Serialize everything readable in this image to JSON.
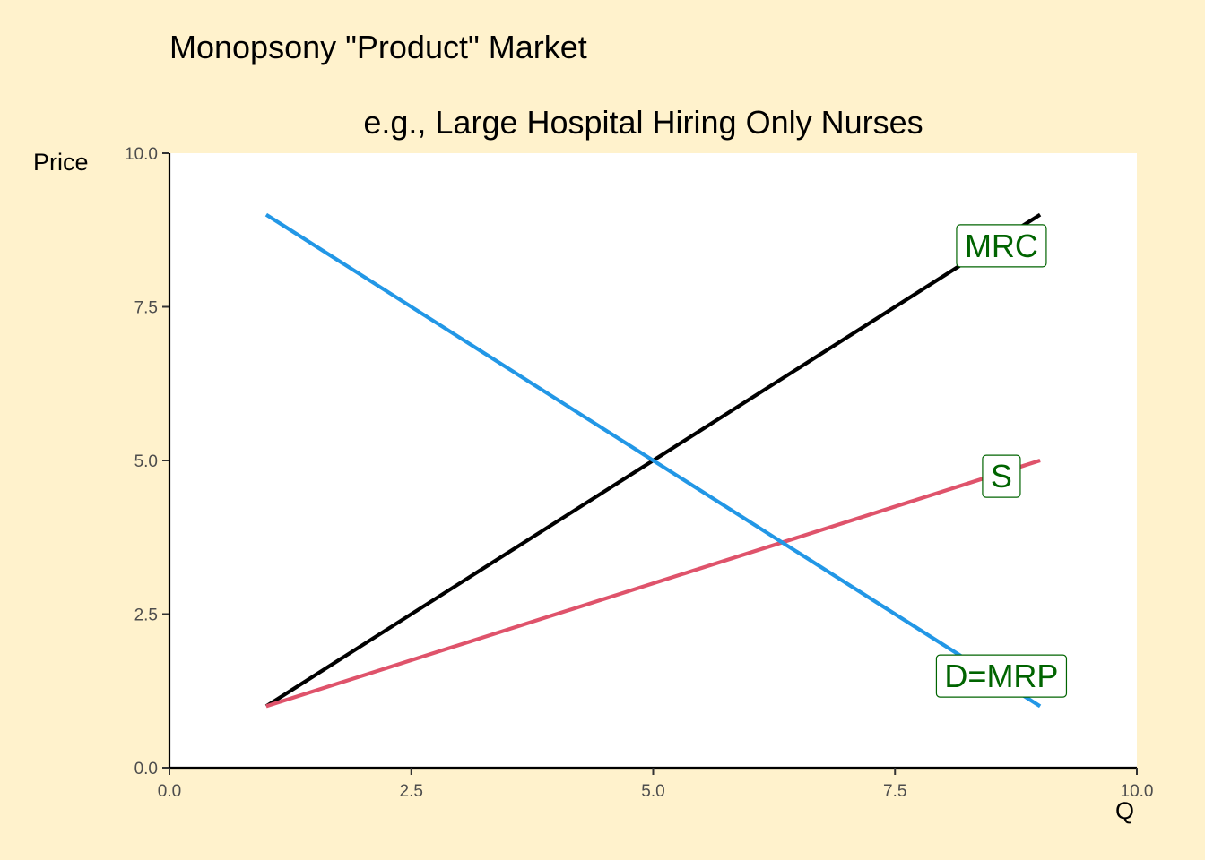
{
  "chart_data": {
    "type": "line",
    "title": "Monopsony \"Product\" Market",
    "subtitle": "e.g., Large Hospital Hiring Only Nurses",
    "xlabel": "Q",
    "ylabel": "Price",
    "xlim": [
      0,
      10
    ],
    "ylim": [
      0,
      10
    ],
    "xticks": [
      "0.0",
      "2.5",
      "5.0",
      "7.5",
      "10.0"
    ],
    "yticks": [
      "0.0",
      "2.5",
      "5.0",
      "7.5",
      "10.0"
    ],
    "grid": false,
    "series": [
      {
        "name": "MRC",
        "color": "#000000",
        "x": [
          1,
          9
        ],
        "y": [
          1,
          9
        ],
        "label_at": [
          8.6,
          8.5
        ]
      },
      {
        "name": "S",
        "color": "#df536b",
        "x": [
          1,
          9
        ],
        "y": [
          1,
          5
        ],
        "label_at": [
          8.6,
          4.75
        ]
      },
      {
        "name": "D=MRP",
        "color": "#2297e6",
        "x": [
          1,
          9
        ],
        "y": [
          9,
          1
        ],
        "label_at": [
          8.6,
          1.5
        ]
      }
    ],
    "label_color": "#006400"
  }
}
